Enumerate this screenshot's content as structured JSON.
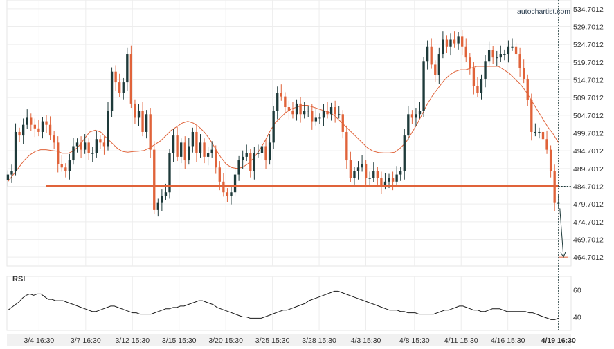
{
  "brand": "autochartist.com",
  "chart_data": {
    "type": "candlestick",
    "y_ticks": [
      "534.7012",
      "529.7012",
      "524.7012",
      "519.7012",
      "514.7012",
      "509.7012",
      "504.7012",
      "499.7012",
      "494.7012",
      "489.7012",
      "484.7012",
      "479.7012",
      "474.7012",
      "469.7012",
      "464.7012"
    ],
    "ylim": [
      462.2,
      537.2
    ],
    "x_ticks": [
      "3/4 16:30",
      "3/7 16:30",
      "3/12 15:30",
      "3/15 15:30",
      "3/20 15:30",
      "3/25 15:30",
      "3/28 15:30",
      "4/3 15:30",
      "4/8 15:30",
      "4/11 15:30",
      "4/16 15:30",
      "4/19 16:30"
    ],
    "x_tick_bold_index": 11,
    "n_slots": 290,
    "x_tick_slots": [
      16,
      40,
      64,
      88,
      112,
      136,
      160,
      184,
      209,
      233,
      257,
      283
    ],
    "close": [
      488.0,
      489.0,
      500.0,
      499.0,
      502.0,
      504.0,
      502.0,
      501.0,
      500.0,
      503.0,
      502.0,
      499.0,
      497.0,
      491.0,
      490.0,
      489.0,
      492.0,
      496.0,
      497.0,
      495.0,
      497.0,
      494.0,
      494.0,
      498.0,
      497.0,
      496.0,
      506.0,
      517.0,
      514.0,
      511.0,
      514.0,
      522.0,
      508.0,
      504.0,
      506.0,
      500.0,
      505.0,
      495.0,
      478.0,
      480.0,
      482.0,
      483.0,
      494.0,
      499.0,
      493.0,
      497.0,
      492.0,
      496.0,
      500.0,
      494.0,
      497.0,
      493.0,
      494.0,
      495.0,
      490.0,
      486.0,
      483.0,
      482.0,
      483.0,
      488.0,
      492.0,
      493.0,
      494.0,
      489.0,
      494.0,
      494.0,
      496.0,
      492.0,
      497.0,
      506.0,
      511.0,
      510.0,
      507.0,
      506.0,
      505.0,
      508.0,
      505.0,
      506.0,
      506.0,
      503.0,
      504.0,
      504.0,
      506.0,
      505.0,
      507.0,
      505.0,
      505.0,
      500.0,
      492.0,
      487.0,
      489.0,
      490.0,
      491.0,
      487.0,
      487.0,
      489.0,
      487.0,
      485.0,
      486.0,
      487.0,
      486.0,
      488.0,
      489.0,
      499.0,
      505.0,
      504.0,
      505.0,
      506.0,
      520.0,
      524.0,
      519.0,
      516.0,
      522.0,
      526.0,
      524.0,
      526.0,
      525.0,
      527.0,
      524.0,
      521.0,
      518.0,
      513.0,
      511.0,
      515.0,
      520.0,
      523.0,
      521.0,
      521.0,
      522.0,
      522.0,
      524.0,
      524.0,
      522.0,
      518.0,
      515.0,
      509.0,
      500.0,
      500.0,
      500.0,
      498.0,
      495.0,
      489.0,
      480.0,
      480.0
    ],
    "open": [
      486.5,
      488.0,
      489.0,
      500.0,
      499.0,
      502.0,
      504.0,
      502.0,
      501.0,
      500.0,
      503.0,
      502.0,
      499.0,
      497.0,
      491.0,
      490.0,
      489.0,
      492.0,
      496.0,
      497.0,
      495.0,
      497.0,
      494.0,
      494.0,
      498.0,
      497.0,
      496.0,
      506.0,
      517.0,
      514.0,
      511.0,
      514.0,
      522.0,
      508.0,
      504.0,
      506.0,
      500.0,
      505.0,
      495.0,
      478.0,
      480.0,
      482.0,
      483.0,
      494.0,
      499.0,
      493.0,
      497.0,
      492.0,
      496.0,
      500.0,
      494.0,
      497.0,
      493.0,
      494.0,
      495.0,
      490.0,
      486.0,
      483.0,
      482.0,
      483.0,
      488.0,
      492.0,
      493.0,
      494.0,
      489.0,
      494.0,
      494.0,
      496.0,
      492.0,
      497.0,
      506.0,
      511.0,
      510.0,
      507.0,
      506.0,
      505.0,
      508.0,
      505.0,
      506.0,
      506.0,
      503.0,
      504.0,
      504.0,
      506.0,
      505.0,
      507.0,
      505.0,
      505.0,
      500.0,
      492.0,
      487.0,
      489.0,
      490.0,
      491.0,
      487.0,
      487.0,
      489.0,
      487.0,
      485.0,
      486.0,
      487.0,
      486.0,
      488.0,
      489.0,
      499.0,
      505.0,
      504.0,
      505.0,
      506.0,
      520.0,
      524.0,
      519.0,
      516.0,
      522.0,
      526.0,
      524.0,
      526.0,
      525.0,
      527.0,
      524.0,
      521.0,
      518.0,
      513.0,
      511.0,
      515.0,
      520.0,
      523.0,
      521.0,
      521.0,
      522.0,
      522.0,
      524.0,
      524.0,
      522.0,
      518.0,
      515.0,
      509.0,
      500.0,
      500.0,
      500.0,
      498.0,
      495.0,
      489.0,
      480.0
    ],
    "ma_values": [
      486.0,
      488.0,
      490.0,
      492.0,
      493.5,
      494.5,
      495.0,
      495.0,
      494.8,
      494.6,
      494.0,
      494.0,
      494.6,
      496.0,
      498.0,
      500.0,
      500.5,
      500.0,
      498.5,
      497.0,
      495.5,
      494.5,
      494.3,
      494.5,
      494.6,
      494.8,
      495.5,
      496.5,
      497.5,
      499.0,
      500.5,
      501.5,
      502.5,
      503.0,
      502.5,
      501.5,
      500.0,
      498.0,
      495.5,
      493.0,
      491.0,
      490.0,
      489.7,
      490.0,
      491.0,
      492.5,
      494.5,
      497.0,
      500.0,
      502.5,
      504.0,
      505.5,
      506.5,
      507.0,
      507.5,
      507.5,
      507.0,
      506.5,
      506.0,
      505.5,
      504.5,
      503.0,
      501.5,
      500.0,
      498.5,
      497.0,
      495.5,
      494.6,
      494.2,
      494.1,
      494.1,
      494.3,
      495.5,
      497.0,
      499.5,
      502.0,
      505.0,
      508.0,
      510.5,
      512.5,
      514.5,
      516.0,
      517.0,
      517.5,
      517.5,
      518.0,
      518.5,
      518.5,
      518.5,
      518.5,
      518.5,
      517.5,
      516.5,
      515.0,
      513.5,
      511.5,
      509.0,
      506.5,
      504.0,
      501.5,
      499.5,
      497.0
    ],
    "resistance_level": 484.7012,
    "target_level": 464.7012,
    "rsi": {
      "title": "RSI",
      "y_ticks": [
        "60",
        "40"
      ],
      "ylim": [
        30,
        70
      ],
      "values": [
        45,
        47,
        49,
        51,
        54,
        56,
        57,
        56,
        57,
        57,
        55,
        53,
        53,
        52,
        52,
        52,
        51,
        50,
        49,
        48,
        47,
        46,
        45,
        44,
        44,
        45,
        46,
        47,
        48,
        48,
        47,
        46,
        45,
        44,
        43,
        43,
        42,
        42,
        42,
        42,
        43,
        44,
        45,
        46,
        46,
        47,
        47,
        48,
        48,
        49,
        50,
        51,
        52,
        52,
        51,
        50,
        49,
        47,
        46,
        45,
        44,
        43,
        42,
        41,
        40,
        40,
        39,
        39,
        39,
        39,
        40,
        41,
        42,
        43,
        44,
        45,
        45,
        46,
        47,
        48,
        49,
        50,
        52,
        53,
        54,
        55,
        56,
        57,
        58,
        59,
        59,
        58,
        57,
        56,
        55,
        54,
        53,
        52,
        51,
        50,
        49,
        48,
        47,
        46,
        45,
        45,
        45,
        44,
        44,
        43,
        43,
        43,
        42,
        42,
        42,
        42,
        42,
        43,
        44,
        45,
        45,
        46,
        47,
        48,
        48,
        47,
        46,
        45,
        45,
        44,
        44,
        45,
        46,
        46,
        46,
        45,
        44,
        44,
        44,
        44,
        44,
        44,
        43,
        43,
        42,
        41,
        40,
        39,
        38,
        38,
        39
      ]
    }
  }
}
